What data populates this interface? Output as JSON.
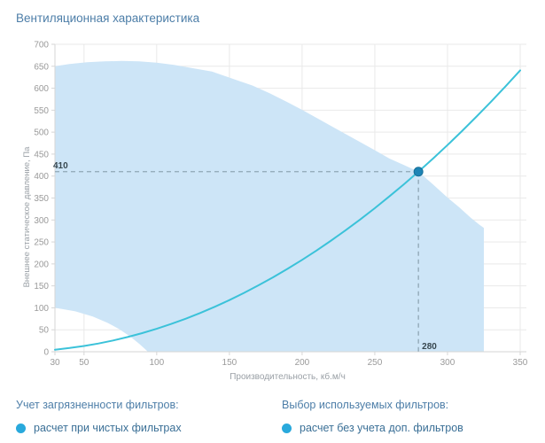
{
  "page": {
    "title": "Вентиляционная характеристика",
    "background": "#ffffff"
  },
  "chart_data": {
    "type": "area",
    "title": "Вентиляционная характеристика",
    "xlabel": "Производительность, кб.м/ч",
    "ylabel": "Внешнее статическое давление, Па",
    "xlim": [
      30,
      350
    ],
    "ylim": [
      0,
      700
    ],
    "x_ticks": [
      30,
      50,
      100,
      150,
      200,
      250,
      300,
      350
    ],
    "y_ticks": [
      0,
      50,
      100,
      150,
      200,
      250,
      300,
      350,
      400,
      450,
      500,
      550,
      600,
      650,
      700
    ],
    "grid": true,
    "legend_position": "none",
    "operating_point": {
      "x": 280,
      "y": 410,
      "x_label": "280",
      "y_label": "410"
    },
    "envelope_outline": [
      [
        30,
        100
      ],
      [
        30,
        650
      ],
      [
        40,
        655
      ],
      [
        52,
        659
      ],
      [
        64,
        661
      ],
      [
        76,
        662
      ],
      [
        88,
        661
      ],
      [
        100,
        658
      ],
      [
        112,
        653
      ],
      [
        124,
        646
      ],
      [
        138,
        638
      ],
      [
        152,
        622
      ],
      [
        166,
        606
      ],
      [
        178,
        588
      ],
      [
        190,
        568
      ],
      [
        202,
        547
      ],
      [
        214,
        525
      ],
      [
        226,
        503
      ],
      [
        238,
        481
      ],
      [
        250,
        459
      ],
      [
        260,
        440
      ],
      [
        270,
        425
      ],
      [
        280,
        410
      ],
      [
        290,
        381
      ],
      [
        300,
        351
      ],
      [
        308,
        329
      ],
      [
        316,
        305
      ],
      [
        322,
        289
      ],
      [
        325,
        282
      ],
      [
        325,
        0
      ],
      [
        94,
        0
      ],
      [
        88,
        18
      ],
      [
        82,
        34
      ],
      [
        74,
        52
      ],
      [
        66,
        66
      ],
      [
        56,
        80
      ],
      [
        44,
        92
      ]
    ],
    "series": [
      {
        "name": "fan-curve",
        "points": [
          [
            30,
            4.7
          ],
          [
            40,
            8.4
          ],
          [
            50,
            13.1
          ],
          [
            60,
            18.8
          ],
          [
            70,
            25.6
          ],
          [
            80,
            33.5
          ],
          [
            90,
            42.4
          ],
          [
            100,
            52.3
          ],
          [
            110,
            63.3
          ],
          [
            120,
            75.3
          ],
          [
            130,
            88.4
          ],
          [
            140,
            102.5
          ],
          [
            150,
            117.7
          ],
          [
            160,
            133.9
          ],
          [
            170,
            151.2
          ],
          [
            180,
            169.4
          ],
          [
            190,
            188.8
          ],
          [
            200,
            209.2
          ],
          [
            210,
            230.6
          ],
          [
            220,
            253.1
          ],
          [
            230,
            276.7
          ],
          [
            240,
            301.2
          ],
          [
            250,
            326.9
          ],
          [
            260,
            353.6
          ],
          [
            270,
            381.3
          ],
          [
            280,
            410.0
          ],
          [
            290,
            439.8
          ],
          [
            300,
            470.7
          ],
          [
            310,
            502.6
          ],
          [
            320,
            535.5
          ],
          [
            330,
            569.5
          ],
          [
            340,
            604.6
          ],
          [
            350,
            640.7
          ]
        ]
      }
    ],
    "colors": {
      "area_fill": "#cde5f7",
      "curve": "#3bc2d9",
      "marker_fill": "#1d84b5",
      "marker_stroke": "#166f99",
      "dashed_line": "#8fa6b5",
      "grid_line": "#e9e9e9",
      "axis_line": "#d6d6d6",
      "tick_text": "#9a9a9a",
      "axis_title_text": "#9aa0a6",
      "annotation_text": "#37474f"
    }
  },
  "filters": {
    "left": {
      "heading": "Учет загрязненности фильтров:",
      "option": "расчет при чистых фильтрах"
    },
    "right": {
      "heading": "Выбор используемых фильтров:",
      "option": "расчет без учета доп. фильтров"
    }
  }
}
